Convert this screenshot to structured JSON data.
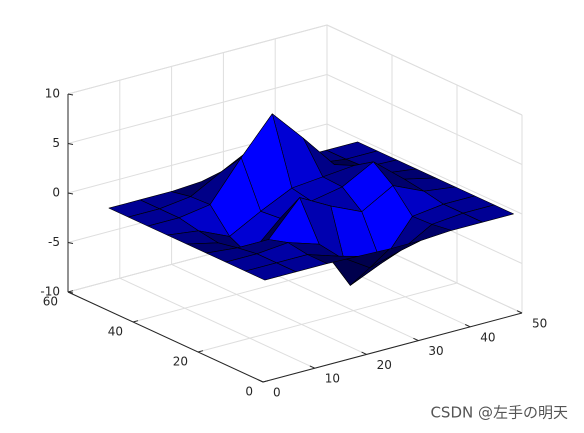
{
  "chart_data": {
    "type": "surface",
    "x": [
      1,
      7,
      13,
      19,
      25,
      31,
      37,
      43,
      49
    ],
    "y": [
      1,
      7,
      13,
      19,
      25,
      31,
      37,
      43,
      49
    ],
    "z": [
      [
        0,
        0,
        0,
        -0.1,
        -0.2,
        -0.2,
        0,
        0,
        0
      ],
      [
        0,
        0,
        0,
        -1.0,
        -3.0,
        -2.1,
        -0.3,
        0,
        0
      ],
      [
        0,
        0,
        0.3,
        -0.7,
        -5.7,
        -4.3,
        -0.4,
        0,
        0
      ],
      [
        0,
        -0.3,
        -0.3,
        3.1,
        1.4,
        0,
        1.8,
        0.4,
        0
      ],
      [
        0,
        -0.7,
        -2.8,
        0.1,
        1.0,
        1.6,
        3.3,
        0.7,
        0
      ],
      [
        0,
        -0.4,
        -1.8,
        -0.1,
        1.4,
        1.7,
        2.0,
        0.4,
        0
      ],
      [
        0,
        0,
        0.5,
        4.4,
        8.0,
        4.7,
        1.2,
        0.1,
        0
      ],
      [
        0,
        0,
        0.4,
        2.1,
        3.7,
        2.1,
        0.4,
        0,
        0
      ],
      [
        0,
        0,
        0,
        0.2,
        0.3,
        0.2,
        0,
        0,
        0
      ]
    ],
    "xlim": [
      0,
      50
    ],
    "ylim": [
      0,
      60
    ],
    "zlim": [
      -10,
      10
    ],
    "xticks": [
      0,
      10,
      20,
      30,
      40,
      50
    ],
    "yticks": [
      0,
      20,
      40,
      60
    ],
    "zticks": [
      -10,
      -5,
      0,
      5,
      10
    ],
    "color": "#0000ff",
    "edge_color": "#000000",
    "grid": true
  },
  "watermark": "CSDN @左手の明天"
}
